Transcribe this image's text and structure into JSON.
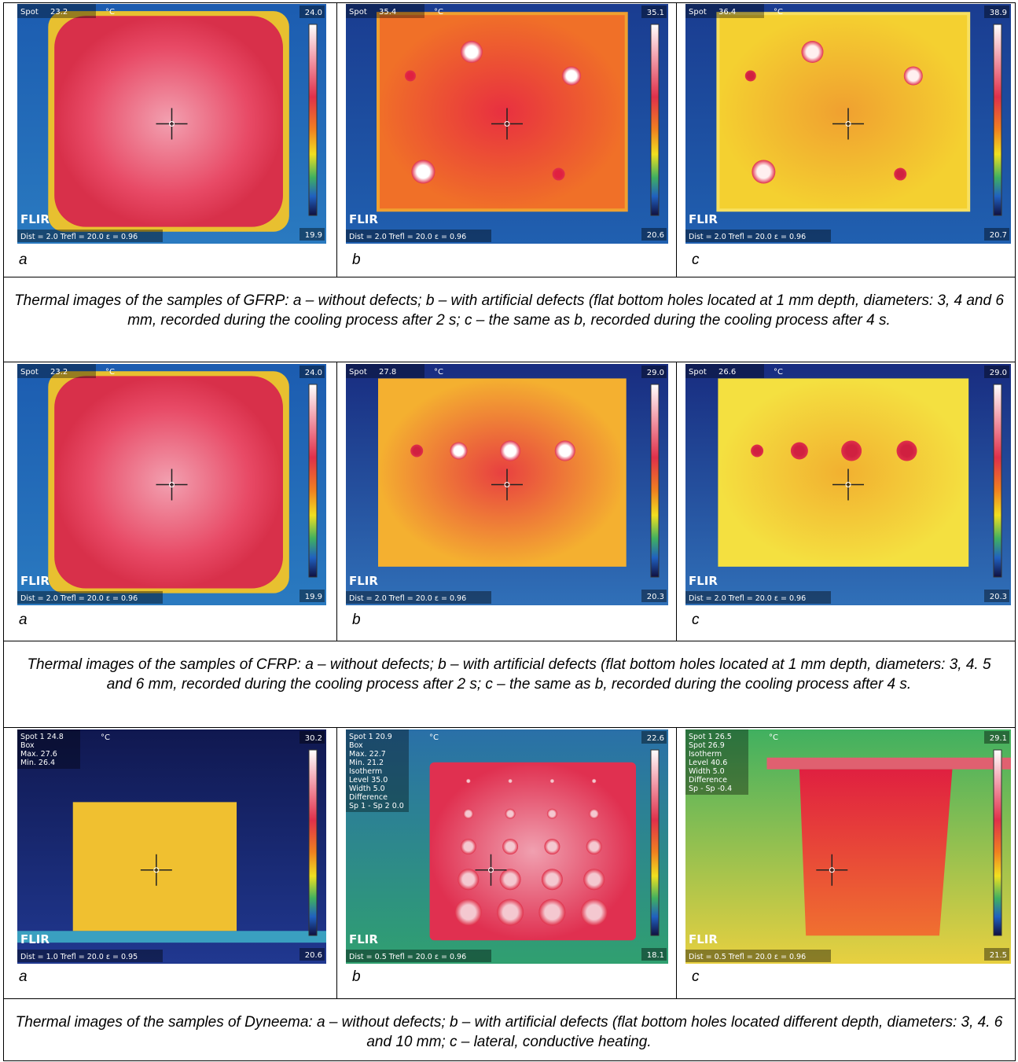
{
  "sections": [
    {
      "panels": [
        {
          "label": "a",
          "overlay": [
            "Spot",
            "23.2"
          ],
          "unit": "°C",
          "scale_max": "24.0",
          "scale_min": "19.9",
          "logo": "FLIR",
          "footer": "Dist = 2.0  Trefl = 20.0  ε = 0.96"
        },
        {
          "label": "b",
          "overlay": [
            "Spot",
            "35.4"
          ],
          "unit": "°C",
          "scale_max": "35.1",
          "scale_min": "20.6",
          "logo": "FLIR",
          "footer": "Dist = 2.0  Trefl = 20.0  ε = 0.96"
        },
        {
          "label": "c",
          "overlay": [
            "Spot",
            "36.4"
          ],
          "unit": "°C",
          "scale_max": "38.9",
          "scale_min": "20.7",
          "logo": "FLIR",
          "footer": "Dist = 2.0  Trefl = 20.0  ε = 0.96"
        }
      ],
      "caption": "Thermal images of the samples of GFRP: a – without defects; b – with artificial defects (flat bottom holes located at 1 mm depth, diameters: 3, 4 and 6 mm, recorded during the cooling process after 2 s; c – the same as b, recorded during the cooling process after 4 s."
    },
    {
      "panels": [
        {
          "label": "a",
          "overlay": [
            "Spot",
            "23.2"
          ],
          "unit": "°C",
          "scale_max": "24.0",
          "scale_min": "19.9",
          "logo": "FLIR",
          "footer": "Dist = 2.0  Trefl = 20.0  ε = 0.96"
        },
        {
          "label": "b",
          "overlay": [
            "Spot",
            "27.8"
          ],
          "unit": "°C",
          "scale_max": "29.0",
          "scale_min": "20.3",
          "logo": "FLIR",
          "footer": "Dist = 2.0  Trefl = 20.0  ε = 0.96"
        },
        {
          "label": "c",
          "overlay": [
            "Spot",
            "26.6"
          ],
          "unit": "°C",
          "scale_max": "29.0",
          "scale_min": "20.3",
          "logo": "FLIR",
          "footer": "Dist = 2.0  Trefl = 20.0  ε = 0.96"
        }
      ],
      "caption": "Thermal images of the samples of CFRP: a – without defects; b – with artificial defects (flat bottom holes located at 1 mm depth, diameters: 3, 4. 5 and 6 mm, recorded during the cooling process after 2 s; c – the same as b, recorded during the cooling process after 4 s."
    },
    {
      "panels": [
        {
          "label": "a",
          "overlay": [
            "Spot 1  24.8",
            "Box",
            "Max.  27.6",
            "Min.  26.4"
          ],
          "unit": "°C",
          "scale_max": "30.2",
          "scale_min": "20.6",
          "logo": "FLIR",
          "footer": "Dist = 1.0  Trefl = 20.0  ε = 0.95"
        },
        {
          "label": "b",
          "overlay": [
            "Spot 1  20.9",
            "Box",
            "Max.  22.7",
            "Min.  21.2",
            "Isotherm",
            "Level  35.0",
            "Width  5.0",
            "Difference",
            "Sp 1 - Sp 2  0.0"
          ],
          "unit": "°C",
          "scale_max": "22.6",
          "scale_min": "18.1",
          "logo": "FLIR",
          "footer": "Dist = 0.5  Trefl = 20.0  ε = 0.96"
        },
        {
          "label": "c",
          "overlay": [
            "Spot 1  26.5",
            "Spot  26.9",
            "Isotherm",
            "Level  40.6",
            "Width  5.0",
            "Difference",
            "Sp - Sp  -0.4"
          ],
          "unit": "°C",
          "scale_max": "29.1",
          "scale_min": "21.5",
          "logo": "FLIR",
          "footer": "Dist = 0.5  Trefl = 20.0  ε = 0.96"
        }
      ],
      "caption": "Thermal images of the samples of Dyneema: a – without defects; b – with artificial defects (flat bottom holes located different depth, diameters: 3, 4. 6 and 10 mm; c – lateral, conductive heating."
    }
  ]
}
